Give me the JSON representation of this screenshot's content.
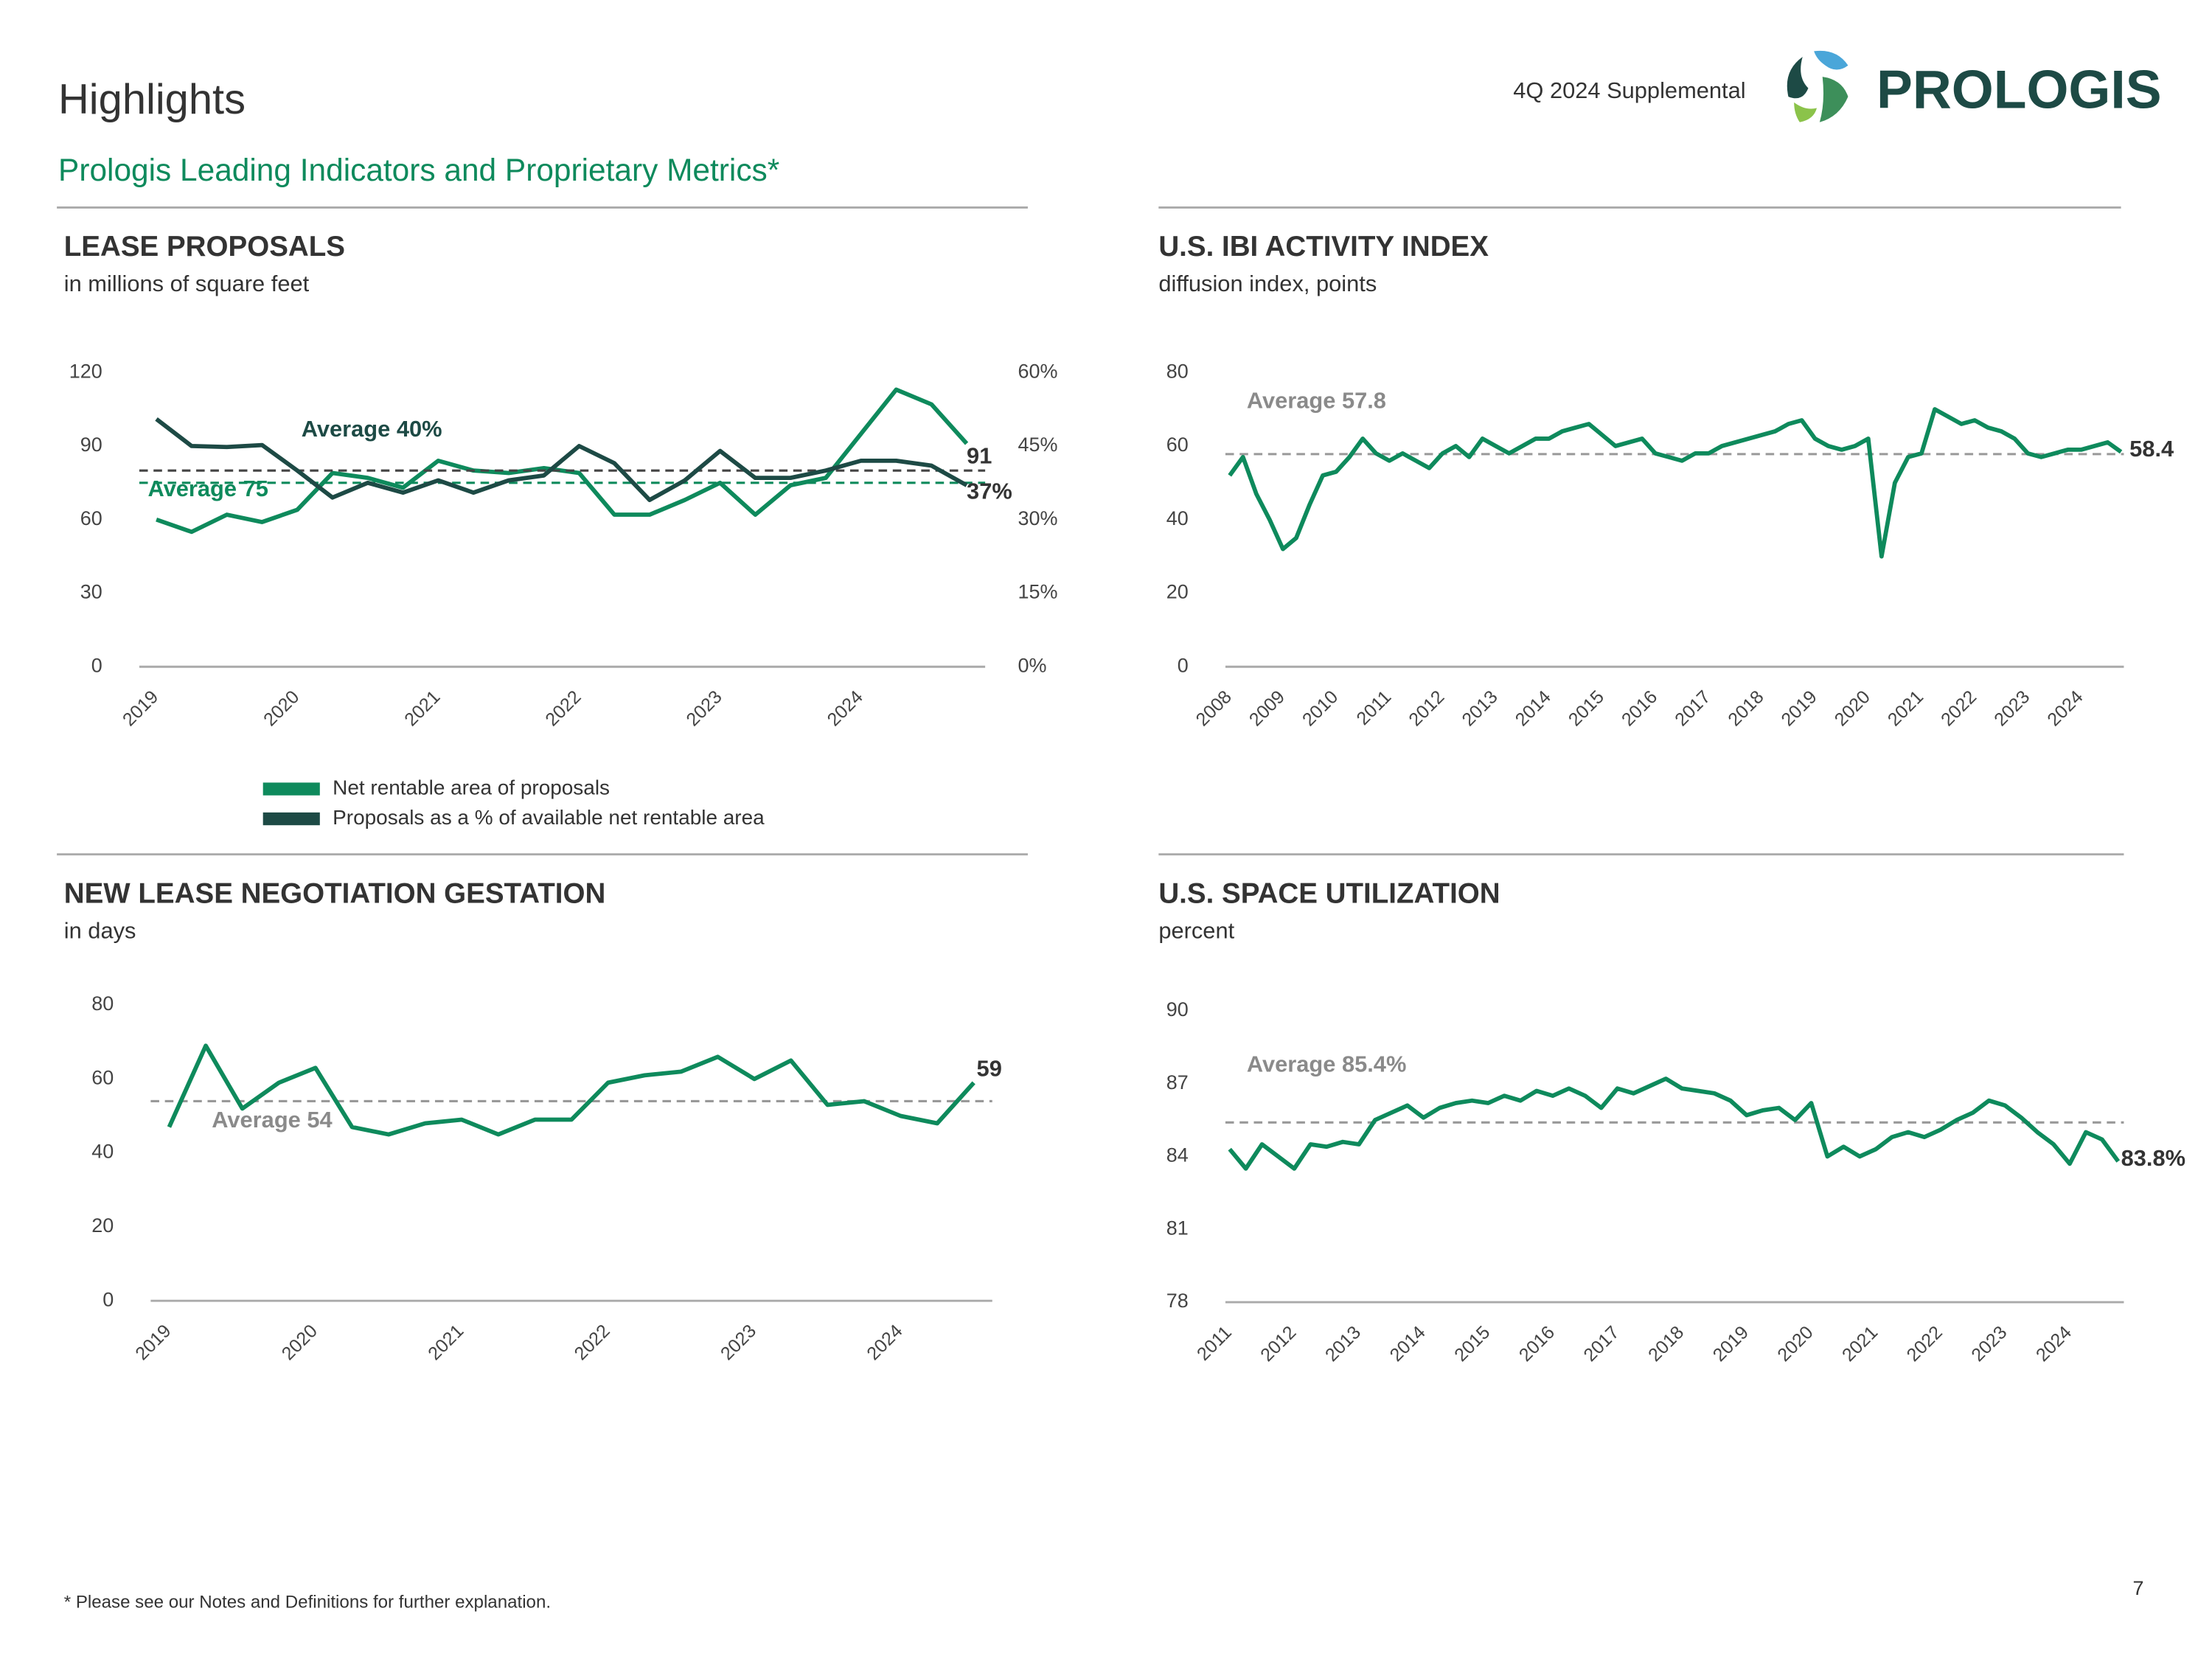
{
  "header": {
    "title": "Highlights",
    "subtitle": "Prologis Leading Indicators and Proprietary Metrics*",
    "report": "4Q 2024 Supplemental",
    "logo": "PROLOGIS",
    "footnote": "* Please see our Notes and Definitions for further explanation.",
    "page": "7"
  },
  "chart_data": [
    {
      "type": "line",
      "title": "LEASE PROPOSALS",
      "subtitle": "in millions of square feet",
      "categories": [
        "2019",
        null,
        null,
        null,
        "2020",
        null,
        null,
        null,
        "2021",
        null,
        null,
        null,
        "2022",
        null,
        null,
        null,
        "2023",
        null,
        null,
        null,
        "2024",
        null,
        null,
        null
      ],
      "series": [
        {
          "name": "Net rentable area of proposals",
          "color": "#0e8a5c",
          "values": [
            60,
            55,
            62,
            59,
            64,
            79,
            77,
            73,
            84,
            80,
            79,
            81,
            79,
            62,
            62,
            68,
            75,
            62,
            74,
            77,
            95,
            113,
            107,
            91
          ],
          "average": 75,
          "average_label": "Average 75",
          "end_label": "91"
        },
        {
          "name": "Proposals as a % of available net rentable area",
          "color": "#1d4a45",
          "axis": "y2",
          "values": [
            50.5,
            45,
            44.8,
            45.2,
            40,
            34.5,
            37.5,
            35.5,
            38,
            35.5,
            38,
            39,
            45,
            41.5,
            34,
            38,
            44,
            38.5,
            38.5,
            40,
            42,
            42,
            41,
            37
          ],
          "average": 40,
          "average_label": "Average 40%",
          "end_label": "37%"
        }
      ],
      "ylim": [
        0,
        120
      ],
      "yticks": [
        0,
        30,
        60,
        90,
        120
      ],
      "y2lim": [
        0,
        60
      ],
      "y2ticks": [
        {
          "value": 0,
          "label": "0%"
        },
        {
          "value": 15,
          "label": "15%"
        },
        {
          "value": 30,
          "label": "30%"
        },
        {
          "value": 45,
          "label": "45%"
        },
        {
          "value": 60,
          "label": "60%"
        }
      ],
      "legend": "bottom"
    },
    {
      "type": "line",
      "title": "U.S. IBI ACTIVITY INDEX",
      "subtitle": "diffusion index, points",
      "categories": [
        "2008",
        null,
        null,
        null,
        "2009",
        null,
        null,
        null,
        "2010",
        null,
        null,
        null,
        "2011",
        null,
        null,
        null,
        "2012",
        null,
        null,
        null,
        "2013",
        null,
        null,
        null,
        "2014",
        null,
        null,
        null,
        "2015",
        null,
        null,
        null,
        "2016",
        null,
        null,
        null,
        "2017",
        null,
        null,
        null,
        "2018",
        null,
        null,
        null,
        "2019",
        null,
        null,
        null,
        "2020",
        null,
        null,
        null,
        "2021",
        null,
        null,
        null,
        "2022",
        null,
        null,
        null,
        "2023",
        null,
        null,
        null,
        "2024",
        null,
        null,
        null
      ],
      "series": [
        {
          "name": "IBI activity index",
          "color": "#0e8a5c",
          "values": [
            52,
            57,
            47,
            40,
            32,
            35,
            44,
            52,
            53,
            57,
            62,
            58,
            56,
            58,
            56,
            54,
            58,
            60,
            57,
            62,
            60,
            58,
            60,
            62,
            62,
            64,
            65,
            66,
            63,
            60,
            61,
            62,
            58,
            57,
            56,
            58,
            58,
            60,
            61,
            62,
            63,
            64,
            66,
            67,
            62,
            60,
            59,
            60,
            62,
            30,
            50,
            57,
            58,
            70,
            68,
            66,
            67,
            65,
            64,
            62,
            58,
            57,
            58,
            59,
            59,
            60,
            61,
            58.4
          ],
          "average": 57.8,
          "average_label": "Average 57.8",
          "end_label": "58.4"
        }
      ],
      "ylim": [
        0,
        80
      ],
      "yticks": [
        0,
        20,
        40,
        60,
        80
      ]
    },
    {
      "type": "line",
      "title": "NEW LEASE NEGOTIATION GESTATION",
      "subtitle": "in days",
      "categories": [
        "2019",
        null,
        null,
        null,
        "2020",
        null,
        null,
        null,
        "2021",
        null,
        null,
        null,
        "2022",
        null,
        null,
        null,
        "2023",
        null,
        null,
        null,
        "2024",
        null,
        null
      ],
      "series": [
        {
          "name": "Gestation",
          "color": "#0e8a5c",
          "values": [
            47,
            69,
            52,
            59,
            63,
            47,
            45,
            48,
            49,
            45,
            49,
            49,
            59,
            61,
            62,
            66,
            60,
            65,
            53,
            54,
            50,
            48,
            59
          ],
          "average": 54,
          "average_label": "Average 54",
          "end_label": "59"
        }
      ],
      "ylim": [
        0,
        80
      ],
      "yticks": [
        0,
        20,
        40,
        60,
        80
      ]
    },
    {
      "type": "line",
      "title": "U.S. SPACE UTILIZATION",
      "subtitle": "percent",
      "categories": [
        "2011",
        null,
        null,
        null,
        "2012",
        null,
        null,
        null,
        "2013",
        null,
        null,
        null,
        "2014",
        null,
        null,
        null,
        "2015",
        null,
        null,
        null,
        "2016",
        null,
        null,
        null,
        "2017",
        null,
        null,
        null,
        "2018",
        null,
        null,
        null,
        "2019",
        null,
        null,
        null,
        "2020",
        null,
        null,
        null,
        "2021",
        null,
        null,
        null,
        "2022",
        null,
        null,
        null,
        "2023",
        null,
        null,
        null,
        "2024",
        null,
        null,
        null
      ],
      "series": [
        {
          "name": "Space utilization",
          "color": "#0e8a5c",
          "values": [
            84.3,
            83.5,
            84.5,
            84.0,
            83.5,
            84.5,
            84.4,
            84.6,
            84.5,
            85.5,
            85.8,
            86.1,
            85.6,
            86.0,
            86.2,
            86.3,
            86.2,
            86.5,
            86.3,
            86.7,
            86.5,
            86.8,
            86.5,
            86.0,
            86.8,
            86.6,
            86.9,
            87.2,
            86.8,
            86.7,
            86.6,
            86.3,
            85.7,
            85.9,
            86.0,
            85.5,
            86.2,
            84.0,
            84.4,
            84.0,
            84.3,
            84.8,
            85.0,
            84.8,
            85.1,
            85.5,
            85.8,
            86.3,
            86.1,
            85.6,
            85.0,
            84.5,
            83.7,
            85.0,
            84.7,
            83.8
          ],
          "average": 85.4,
          "average_label": "Average 85.4%",
          "end_label": "83.8%"
        }
      ],
      "ylim": [
        78,
        90
      ],
      "yticks": [
        78,
        81,
        84,
        87,
        90
      ]
    }
  ]
}
